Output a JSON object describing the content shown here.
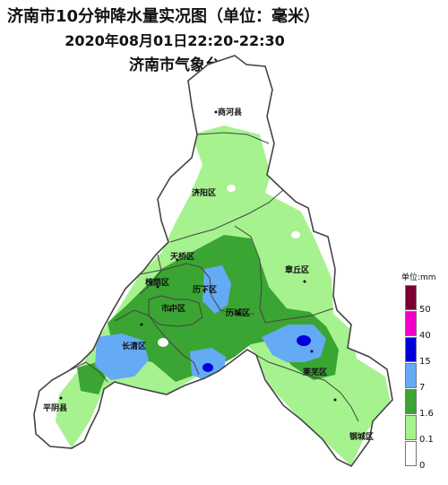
{
  "header": {
    "title": "济南市10分钟降水量实况图（单位：毫米）",
    "time_range": "2020年08月01日22:20-22:30",
    "station": "济南市气象台"
  },
  "districts": [
    {
      "name": "商河县"
    },
    {
      "name": "济阳区"
    },
    {
      "name": "天桥区"
    },
    {
      "name": "章丘区"
    },
    {
      "name": "槐荫区"
    },
    {
      "name": "历下区"
    },
    {
      "name": "市中区"
    },
    {
      "name": "历城区"
    },
    {
      "name": "长清区"
    },
    {
      "name": "莱芜区"
    },
    {
      "name": "平阴县"
    },
    {
      "name": "钢城区"
    }
  ],
  "legend": {
    "title": "单位:mm",
    "levels": [
      {
        "label": "50",
        "color": "#7a0031"
      },
      {
        "label": "40",
        "color": "#f000c8"
      },
      {
        "label": "15",
        "color": "#0000d8"
      },
      {
        "label": "7",
        "color": "#64aaf5"
      },
      {
        "label": "1.6",
        "color": "#3aa532"
      },
      {
        "label": "0.1",
        "color": "#a6f28f"
      },
      {
        "label": "0",
        "color": "#ffffff"
      }
    ]
  },
  "colors": {
    "light_rain": "#a6f28f",
    "moderate_rain": "#3aa532",
    "heavy_rain": "#64aaf5",
    "storm": "#0000d8",
    "boundary": "#444444"
  }
}
